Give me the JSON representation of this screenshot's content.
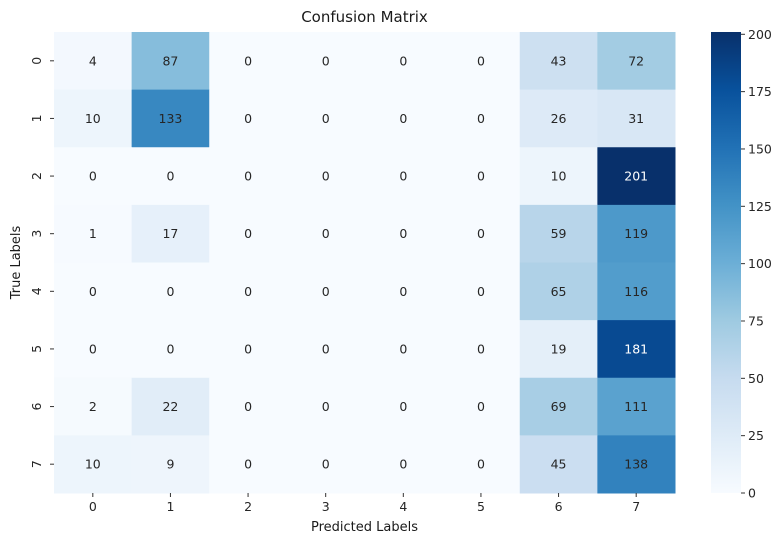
{
  "chart_data": {
    "type": "heatmap",
    "title": "Confusion Matrix",
    "xlabel": "Predicted Labels",
    "ylabel": "True Labels",
    "x_categories": [
      "0",
      "1",
      "2",
      "3",
      "4",
      "5",
      "6",
      "7"
    ],
    "y_categories": [
      "0",
      "1",
      "2",
      "3",
      "4",
      "5",
      "6",
      "7"
    ],
    "matrix": [
      [
        4,
        87,
        0,
        0,
        0,
        0,
        43,
        72
      ],
      [
        10,
        133,
        0,
        0,
        0,
        0,
        26,
        31
      ],
      [
        0,
        0,
        0,
        0,
        0,
        0,
        10,
        201
      ],
      [
        1,
        17,
        0,
        0,
        0,
        0,
        59,
        119
      ],
      [
        0,
        0,
        0,
        0,
        0,
        0,
        65,
        116
      ],
      [
        0,
        0,
        0,
        0,
        0,
        0,
        19,
        181
      ],
      [
        2,
        22,
        0,
        0,
        0,
        0,
        69,
        111
      ],
      [
        10,
        9,
        0,
        0,
        0,
        0,
        45,
        138
      ]
    ],
    "colormap": "Blues",
    "color_range": [
      0,
      201
    ],
    "colorbar_ticks": [
      "0",
      "25",
      "50",
      "75",
      "100",
      "125",
      "150",
      "175",
      "200"
    ],
    "grid": false
  }
}
